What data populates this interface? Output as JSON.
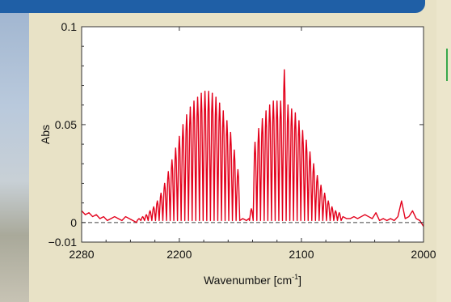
{
  "chart_data": {
    "type": "line",
    "xlabel": "Wavenumber [cm",
    "xlabel_sup": "-1",
    "xlabel_end": "]",
    "ylabel": "Abs",
    "xlim": [
      2280,
      2000
    ],
    "ylim": [
      -0.01,
      0.1
    ],
    "x_reversed": true,
    "x_ticks": [
      2280,
      2200,
      2100,
      2000
    ],
    "x_tick_labels": [
      "2280",
      "2200",
      "2100",
      "2000"
    ],
    "y_ticks": [
      -0.01,
      0,
      0.05,
      0.1
    ],
    "y_tick_labels": [
      "−0.01",
      "0",
      "0.05",
      "0.1"
    ],
    "baseline": 0,
    "grid": false,
    "colors": {
      "series": "#e3001b",
      "baseline": "#444444",
      "plot_bg": "#ffffff"
    },
    "series": [
      {
        "baseline_noise": [
          [
            2280,
            0.006
          ],
          [
            2277,
            0.004
          ],
          [
            2274,
            0.005
          ],
          [
            2271,
            0.003
          ],
          [
            2268,
            0.004
          ],
          [
            2265,
            0.002
          ],
          [
            2262,
            0.003
          ],
          [
            2259,
            0.001
          ],
          [
            2256,
            0.002
          ],
          [
            2253,
            0.003
          ],
          [
            2250,
            0.002
          ],
          [
            2247,
            0.001
          ],
          [
            2244,
            0.003
          ],
          [
            2241,
            0.002
          ],
          [
            2238,
            0.001
          ]
        ],
        "r_branch": [
          [
            2233,
            0.002
          ],
          [
            2230,
            0.003
          ],
          [
            2227,
            0.004
          ],
          [
            2224,
            0.006
          ],
          [
            2221,
            0.008
          ],
          [
            2218,
            0.011
          ],
          [
            2215,
            0.015
          ],
          [
            2212,
            0.02
          ],
          [
            2209,
            0.026
          ],
          [
            2206,
            0.032
          ],
          [
            2203,
            0.038
          ],
          [
            2200,
            0.044
          ],
          [
            2197,
            0.05
          ],
          [
            2194,
            0.055
          ],
          [
            2191,
            0.059
          ],
          [
            2188,
            0.062
          ],
          [
            2185,
            0.064
          ],
          [
            2182,
            0.066
          ],
          [
            2179,
            0.067
          ],
          [
            2176,
            0.067
          ],
          [
            2173,
            0.066
          ],
          [
            2170,
            0.064
          ],
          [
            2167,
            0.061
          ],
          [
            2164,
            0.057
          ],
          [
            2161,
            0.052
          ],
          [
            2158,
            0.046
          ],
          [
            2155,
            0.037
          ],
          [
            2152,
            0.027
          ]
        ],
        "p_branch": [
          [
            2141,
            0.007
          ],
          [
            2138,
            0.041
          ],
          [
            2135,
            0.048
          ],
          [
            2132,
            0.053
          ],
          [
            2129,
            0.057
          ],
          [
            2126,
            0.06
          ],
          [
            2123,
            0.062
          ],
          [
            2120,
            0.062
          ],
          [
            2117,
            0.062
          ],
          [
            2114,
            0.078
          ],
          [
            2111,
            0.06
          ],
          [
            2108,
            0.058
          ],
          [
            2105,
            0.056
          ],
          [
            2102,
            0.052
          ],
          [
            2099,
            0.047
          ],
          [
            2096,
            0.042
          ],
          [
            2093,
            0.036
          ],
          [
            2090,
            0.03
          ],
          [
            2087,
            0.024
          ],
          [
            2084,
            0.019
          ],
          [
            2081,
            0.015
          ],
          [
            2078,
            0.011
          ],
          [
            2075,
            0.008
          ],
          [
            2072,
            0.006
          ],
          [
            2069,
            0.005
          ]
        ],
        "tail_noise": [
          [
            2066,
            0.003
          ],
          [
            2063,
            0.002
          ],
          [
            2060,
            0.002
          ],
          [
            2057,
            0.003
          ],
          [
            2054,
            0.002
          ],
          [
            2051,
            0.003
          ],
          [
            2048,
            0.004
          ],
          [
            2045,
            0.003
          ],
          [
            2042,
            0.002
          ],
          [
            2039,
            0.005
          ],
          [
            2036,
            0.001
          ],
          [
            2033,
            0.002
          ],
          [
            2030,
            0.001
          ],
          [
            2027,
            0.002
          ],
          [
            2024,
            0.001
          ],
          [
            2021,
            0.003
          ],
          [
            2018,
            0.011
          ],
          [
            2015,
            0.002
          ],
          [
            2012,
            0.003
          ],
          [
            2009,
            0.006
          ],
          [
            2006,
            0.002
          ],
          [
            2003,
            0.001
          ],
          [
            2000,
            -0.002
          ]
        ]
      }
    ]
  }
}
